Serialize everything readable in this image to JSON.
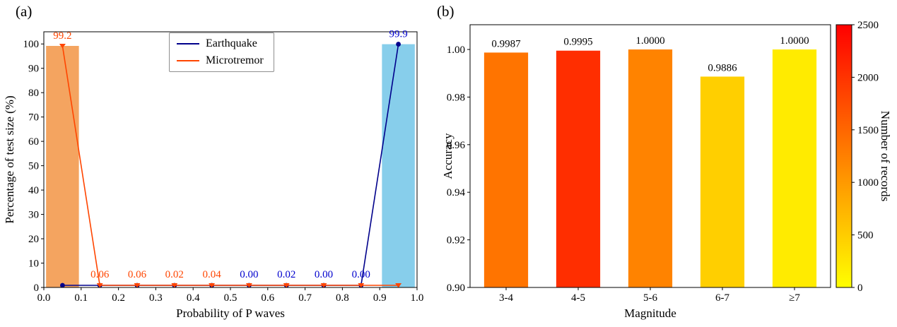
{
  "figure": {
    "background": "#ffffff",
    "text_color": "#000000"
  },
  "chart_data": [
    {
      "id": "panel-a",
      "type": "bar",
      "panel_tag": "(a)",
      "xlabel": "Probability of P waves",
      "ylabel": "Percentage of test size (%)",
      "xlim": [
        0.0,
        1.0
      ],
      "ylim": [
        0,
        105
      ],
      "grid": false,
      "x_tick_labels": [
        "0.0",
        "0.1",
        "0.2",
        "0.3",
        "0.4",
        "0.5",
        "0.6",
        "0.7",
        "0.8",
        "0.9",
        "1.0"
      ],
      "y_tick_labels": [
        "0",
        "10",
        "20",
        "30",
        "40",
        "50",
        "60",
        "70",
        "80",
        "90",
        "100"
      ],
      "bin_centers": [
        0.05,
        0.15,
        0.25,
        0.35,
        0.45,
        0.55,
        0.65,
        0.75,
        0.85,
        0.95
      ],
      "bin_width": 0.1,
      "series": [
        {
          "name": "Earthquake",
          "line_color": "#00008B",
          "bar_color": "#87CEEB",
          "marker": "circle",
          "values": [
            0,
            0,
            0,
            0,
            0,
            0.0,
            0.02,
            0.0,
            0.0,
            99.9
          ]
        },
        {
          "name": "Microtremor",
          "line_color": "#FF4500",
          "bar_color": "#F4A460",
          "marker": "triangle-down",
          "values": [
            99.2,
            0.06,
            0.06,
            0.02,
            0.04,
            0,
            0,
            0,
            0,
            0
          ]
        }
      ],
      "annotations": [
        {
          "text": "99.2",
          "x": 0.05,
          "y": 99.2,
          "color": "#FF4500"
        },
        {
          "text": "99.9",
          "x": 0.95,
          "y": 99.9,
          "color": "#0000CD"
        },
        {
          "text": "0.06",
          "x": 0.15,
          "y": 0,
          "color": "#FF4500"
        },
        {
          "text": "0.06",
          "x": 0.25,
          "y": 0,
          "color": "#FF4500"
        },
        {
          "text": "0.02",
          "x": 0.35,
          "y": 0,
          "color": "#FF4500"
        },
        {
          "text": "0.04",
          "x": 0.45,
          "y": 0,
          "color": "#FF4500"
        },
        {
          "text": "0.00",
          "x": 0.55,
          "y": 0,
          "color": "#0000CD"
        },
        {
          "text": "0.02",
          "x": 0.65,
          "y": 0,
          "color": "#0000CD"
        },
        {
          "text": "0.00",
          "x": 0.75,
          "y": 0,
          "color": "#0000CD"
        },
        {
          "text": "0.00",
          "x": 0.85,
          "y": 0,
          "color": "#0000CD"
        }
      ],
      "legend": {
        "position": "upper center",
        "entries": [
          "Earthquake",
          "Microtremor"
        ]
      }
    },
    {
      "id": "panel-b",
      "type": "bar",
      "panel_tag": "(b)",
      "xlabel": "Magnitude",
      "ylabel": "Accuracy",
      "categories": [
        "3-4",
        "4-5",
        "5-6",
        "6-7",
        "≥7"
      ],
      "values": [
        0.9987,
        0.9995,
        1.0,
        0.9886,
        1.0
      ],
      "value_labels": [
        "0.9987",
        "0.9995",
        "1.0000",
        "0.9886",
        "1.0000"
      ],
      "bar_colors": [
        "#FF7400",
        "#FF2E00",
        "#FF8300",
        "#FFCF00",
        "#FFEB00"
      ],
      "ylim": [
        0.9,
        1.0104
      ],
      "grid": false,
      "y_tick_labels": [
        "0.90",
        "0.92",
        "0.94",
        "0.96",
        "0.98",
        "1.00"
      ],
      "colorbar": {
        "label": "Number of records",
        "tick_labels": [
          "0",
          "500",
          "1000",
          "1500",
          "2000",
          "2500"
        ],
        "range": [
          0,
          2500
        ],
        "gradient_bottom_to_top": [
          "#FFFF00",
          "#FF8000",
          "#FF0000"
        ]
      }
    }
  ]
}
